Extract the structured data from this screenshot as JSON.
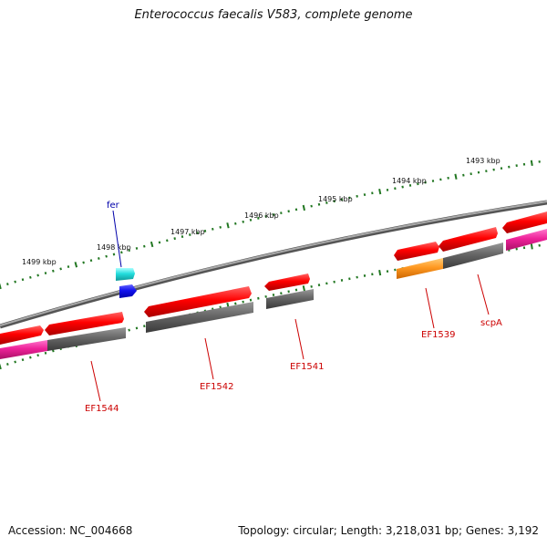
{
  "title": "Enterococcus faecalis V583, complete genome",
  "footer": {
    "accession": "Accession: NC_004668",
    "summary": "Topology: circular; Length: 3,218,031 bp; Genes: 3,192"
  },
  "scale_labels": [
    "1499 kbp",
    "1498 kbp",
    "1497 kbp",
    "1496 kbp",
    "1495 kbp",
    "1494 kbp",
    "1493 kbp"
  ],
  "gene_labels": [
    {
      "name": "fer",
      "color": "#0000aa"
    },
    {
      "name": "EF1544",
      "color": "#cc0000"
    },
    {
      "name": "EF1542",
      "color": "#cc0000"
    },
    {
      "name": "EF1541",
      "color": "#cc0000"
    },
    {
      "name": "EF1539",
      "color": "#cc0000"
    },
    {
      "name": "scpA",
      "color": "#cc0000"
    }
  ],
  "colors": {
    "backbone": "#8a8a8a",
    "gene_forward": "#ee1111",
    "cds_gray": "#666666",
    "rna_magenta": "#ee2299",
    "orange": "#ff9922",
    "cyan": "#22dddd",
    "blue": "#1111ee",
    "tick_green": "#227722"
  }
}
